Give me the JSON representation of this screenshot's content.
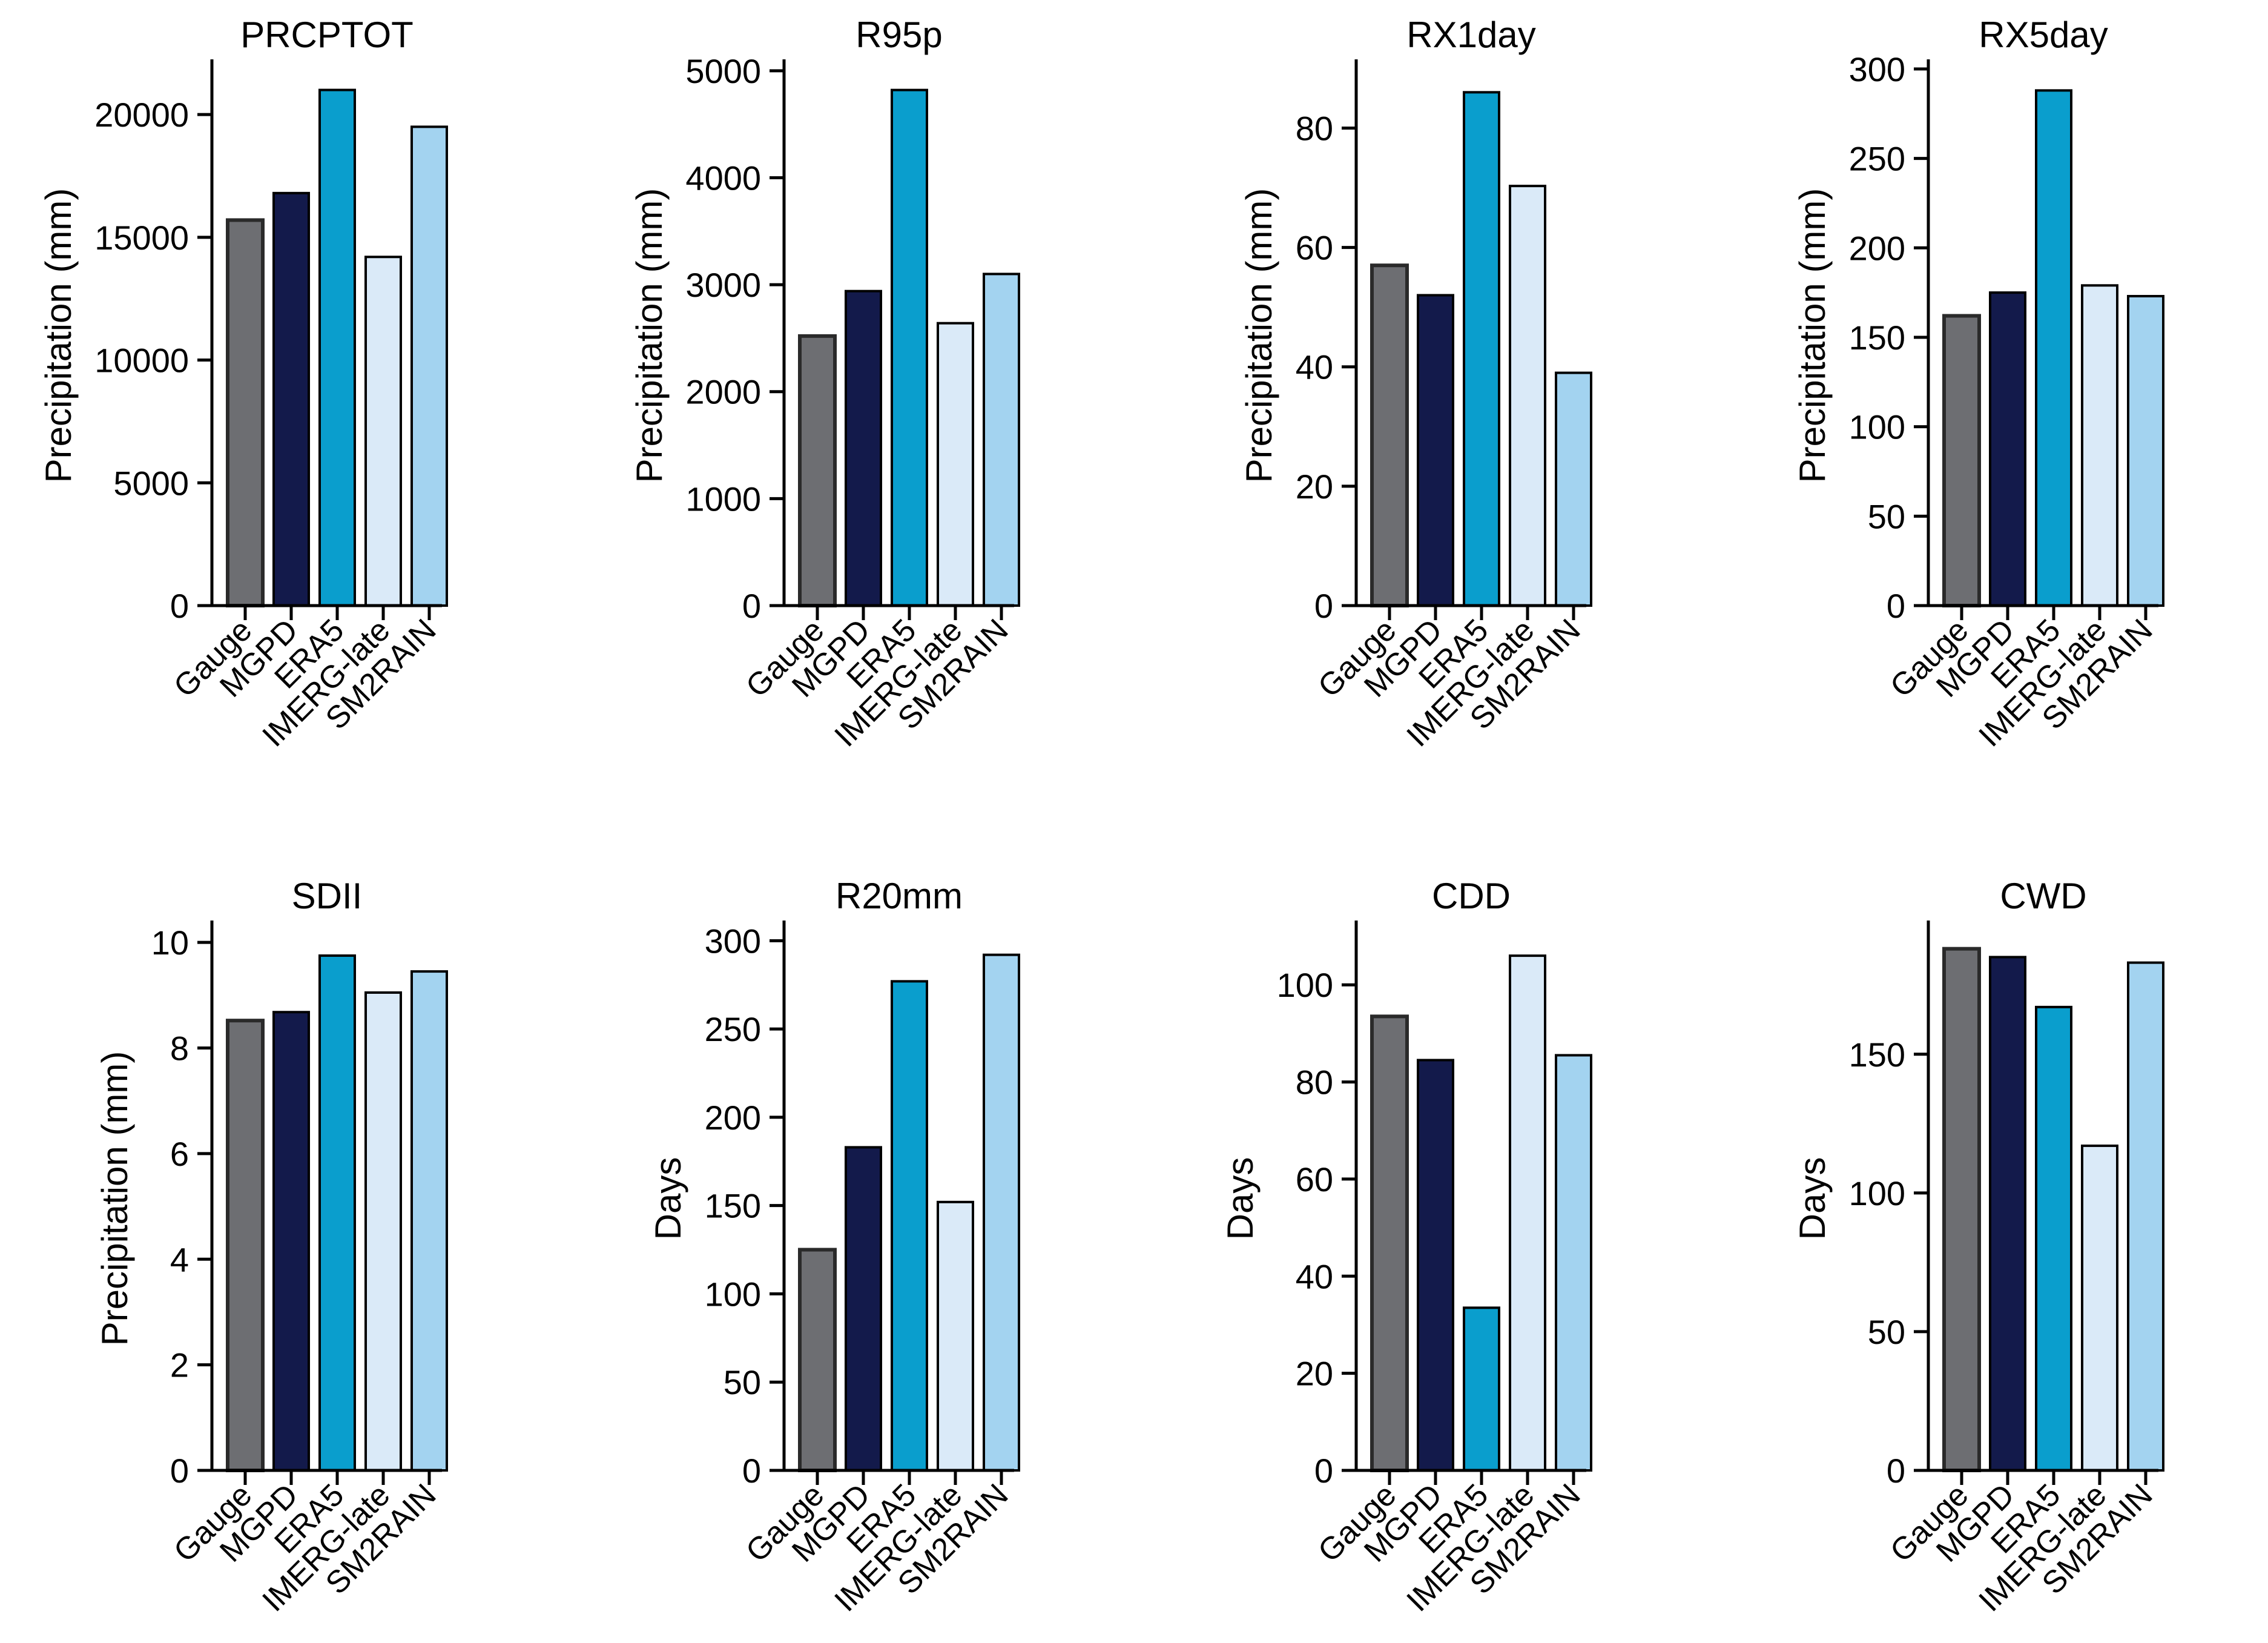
{
  "figure": {
    "rows": 2,
    "cols": 4
  },
  "colors": {
    "Gauge": "#6d6e72",
    "MGPD": "#131a4b",
    "ERA5": "#0a9ecd",
    "IMERG-late": "#daeaf8",
    "SM2RAIN": "#a3d3f0"
  },
  "chart_data": [
    {
      "type": "bar",
      "title": "PRCPTOT",
      "ylabel": "Precipitation (mm)",
      "xlabel": "",
      "categories": [
        "Gauge",
        "MGPD",
        "ERA5",
        "IMERG-late",
        "SM2RAIN"
      ],
      "values": [
        15700,
        16800,
        21000,
        14200,
        19500
      ],
      "ylim": [
        0,
        22000
      ],
      "yticks": [
        0,
        5000,
        10000,
        15000,
        20000
      ]
    },
    {
      "type": "bar",
      "title": "R95p",
      "ylabel": "Precipitation (mm)",
      "xlabel": "",
      "categories": [
        "Gauge",
        "MGPD",
        "ERA5",
        "IMERG-late",
        "SM2RAIN"
      ],
      "values": [
        2520,
        2940,
        4820,
        2640,
        3100
      ],
      "ylim": [
        0,
        5050
      ],
      "yticks": [
        0,
        1000,
        2000,
        3000,
        4000,
        5000
      ]
    },
    {
      "type": "bar",
      "title": "RX1day",
      "ylabel": "Precipitation (mm)",
      "xlabel": "",
      "categories": [
        "Gauge",
        "MGPD",
        "ERA5",
        "IMERG-late",
        "SM2RAIN"
      ],
      "values": [
        57,
        52,
        86,
        70.3,
        39
      ],
      "ylim": [
        0,
        90.5
      ],
      "yticks": [
        0,
        20,
        40,
        60,
        80
      ]
    },
    {
      "type": "bar",
      "title": "RX5day",
      "ylabel": "Precipitation (mm)",
      "xlabel": "",
      "categories": [
        "Gauge",
        "MGPD",
        "ERA5",
        "IMERG-late",
        "SM2RAIN"
      ],
      "values": [
        162,
        175,
        288,
        179,
        173
      ],
      "ylim": [
        0,
        302
      ],
      "yticks": [
        0,
        50,
        100,
        150,
        200,
        250,
        300
      ]
    },
    {
      "type": "bar",
      "title": "SDII",
      "ylabel": "Precipitation (mm)",
      "xlabel": "",
      "categories": [
        "Gauge",
        "MGPD",
        "ERA5",
        "IMERG-late",
        "SM2RAIN"
      ],
      "values": [
        8.52,
        8.68,
        9.75,
        9.05,
        9.45
      ],
      "ylim": [
        0,
        10.3
      ],
      "yticks": [
        0,
        2,
        4,
        6,
        8,
        10
      ]
    },
    {
      "type": "bar",
      "title": "R20mm",
      "ylabel": "Days",
      "xlabel": "",
      "categories": [
        "Gauge",
        "MGPD",
        "ERA5",
        "IMERG-late",
        "SM2RAIN"
      ],
      "values": [
        125,
        183,
        277,
        152,
        292
      ],
      "ylim": [
        0,
        308
      ],
      "yticks": [
        0,
        50,
        100,
        150,
        200,
        250,
        300
      ]
    },
    {
      "type": "bar",
      "title": "CDD",
      "ylabel": "Days",
      "xlabel": "",
      "categories": [
        "Gauge",
        "MGPD",
        "ERA5",
        "IMERG-late",
        "SM2RAIN"
      ],
      "values": [
        93.5,
        84.5,
        33.5,
        106,
        85.5
      ],
      "ylim": [
        0,
        112
      ],
      "yticks": [
        0,
        20,
        40,
        60,
        80,
        100
      ]
    },
    {
      "type": "bar",
      "title": "CWD",
      "ylabel": "Days",
      "xlabel": "",
      "categories": [
        "Gauge",
        "MGPD",
        "ERA5",
        "IMERG-late",
        "SM2RAIN"
      ],
      "values": [
        188,
        185,
        167,
        117,
        183
      ],
      "ylim": [
        0,
        196
      ],
      "yticks": [
        0,
        50,
        100,
        150
      ]
    }
  ]
}
